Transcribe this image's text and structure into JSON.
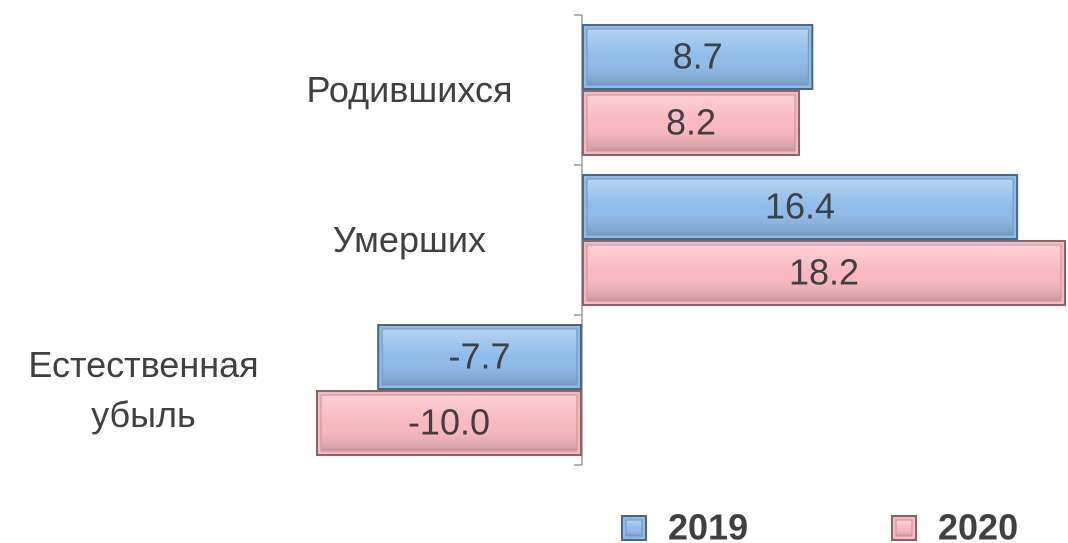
{
  "chart_data": {
    "type": "barh",
    "categories": [
      "Родившихся",
      "Умерших",
      "Естественная убыль"
    ],
    "series": [
      {
        "name": "2019",
        "color": "#8dbbea",
        "values": [
          8.7,
          16.4,
          -7.7
        ],
        "value_labels": [
          "8.7",
          "16.4",
          "-7.7"
        ]
      },
      {
        "name": "2020",
        "color": "#f8b8bd",
        "values": [
          8.2,
          18.2,
          -10.0
        ],
        "value_labels": [
          "8.2",
          "18.2",
          "-10.0"
        ]
      }
    ],
    "legend": "bottom"
  }
}
